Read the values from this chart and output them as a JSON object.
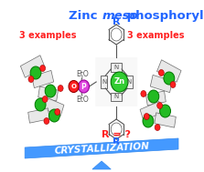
{
  "title_parts": [
    "Zinc ",
    "meso",
    "-phosphorylporphyrins"
  ],
  "title_color": "#2266ff",
  "title_fontsize": 9.5,
  "bg_color": "#ffffff",
  "left_label": "3 examples",
  "right_label": "3 examples",
  "label_color": "#ff2020",
  "label_fontsize": 7.0,
  "r_label": "R = ?",
  "r_label_color": "#ff2020",
  "r_fontsize": 8,
  "crystallization_text": "CRYSTALLIZATION",
  "crystallization_color": "#ffffff",
  "crystallization_bg": "#4499ff",
  "crystal_fontsize": 7.5,
  "balance_color": "#4499ff",
  "r_text_color": "#2266ff",
  "r_text_fontsize": 8,
  "bond_color": "#555555",
  "porphyrin_bg": "#f5f5f5",
  "zn_color": "#33cc33",
  "p_color": "#dd44dd",
  "o_color": "#ff2020",
  "red_dot_color": "#ff2020",
  "green_dot_color": "#22bb22",
  "fig_width": 2.23,
  "fig_height": 1.89,
  "dpi": 100
}
